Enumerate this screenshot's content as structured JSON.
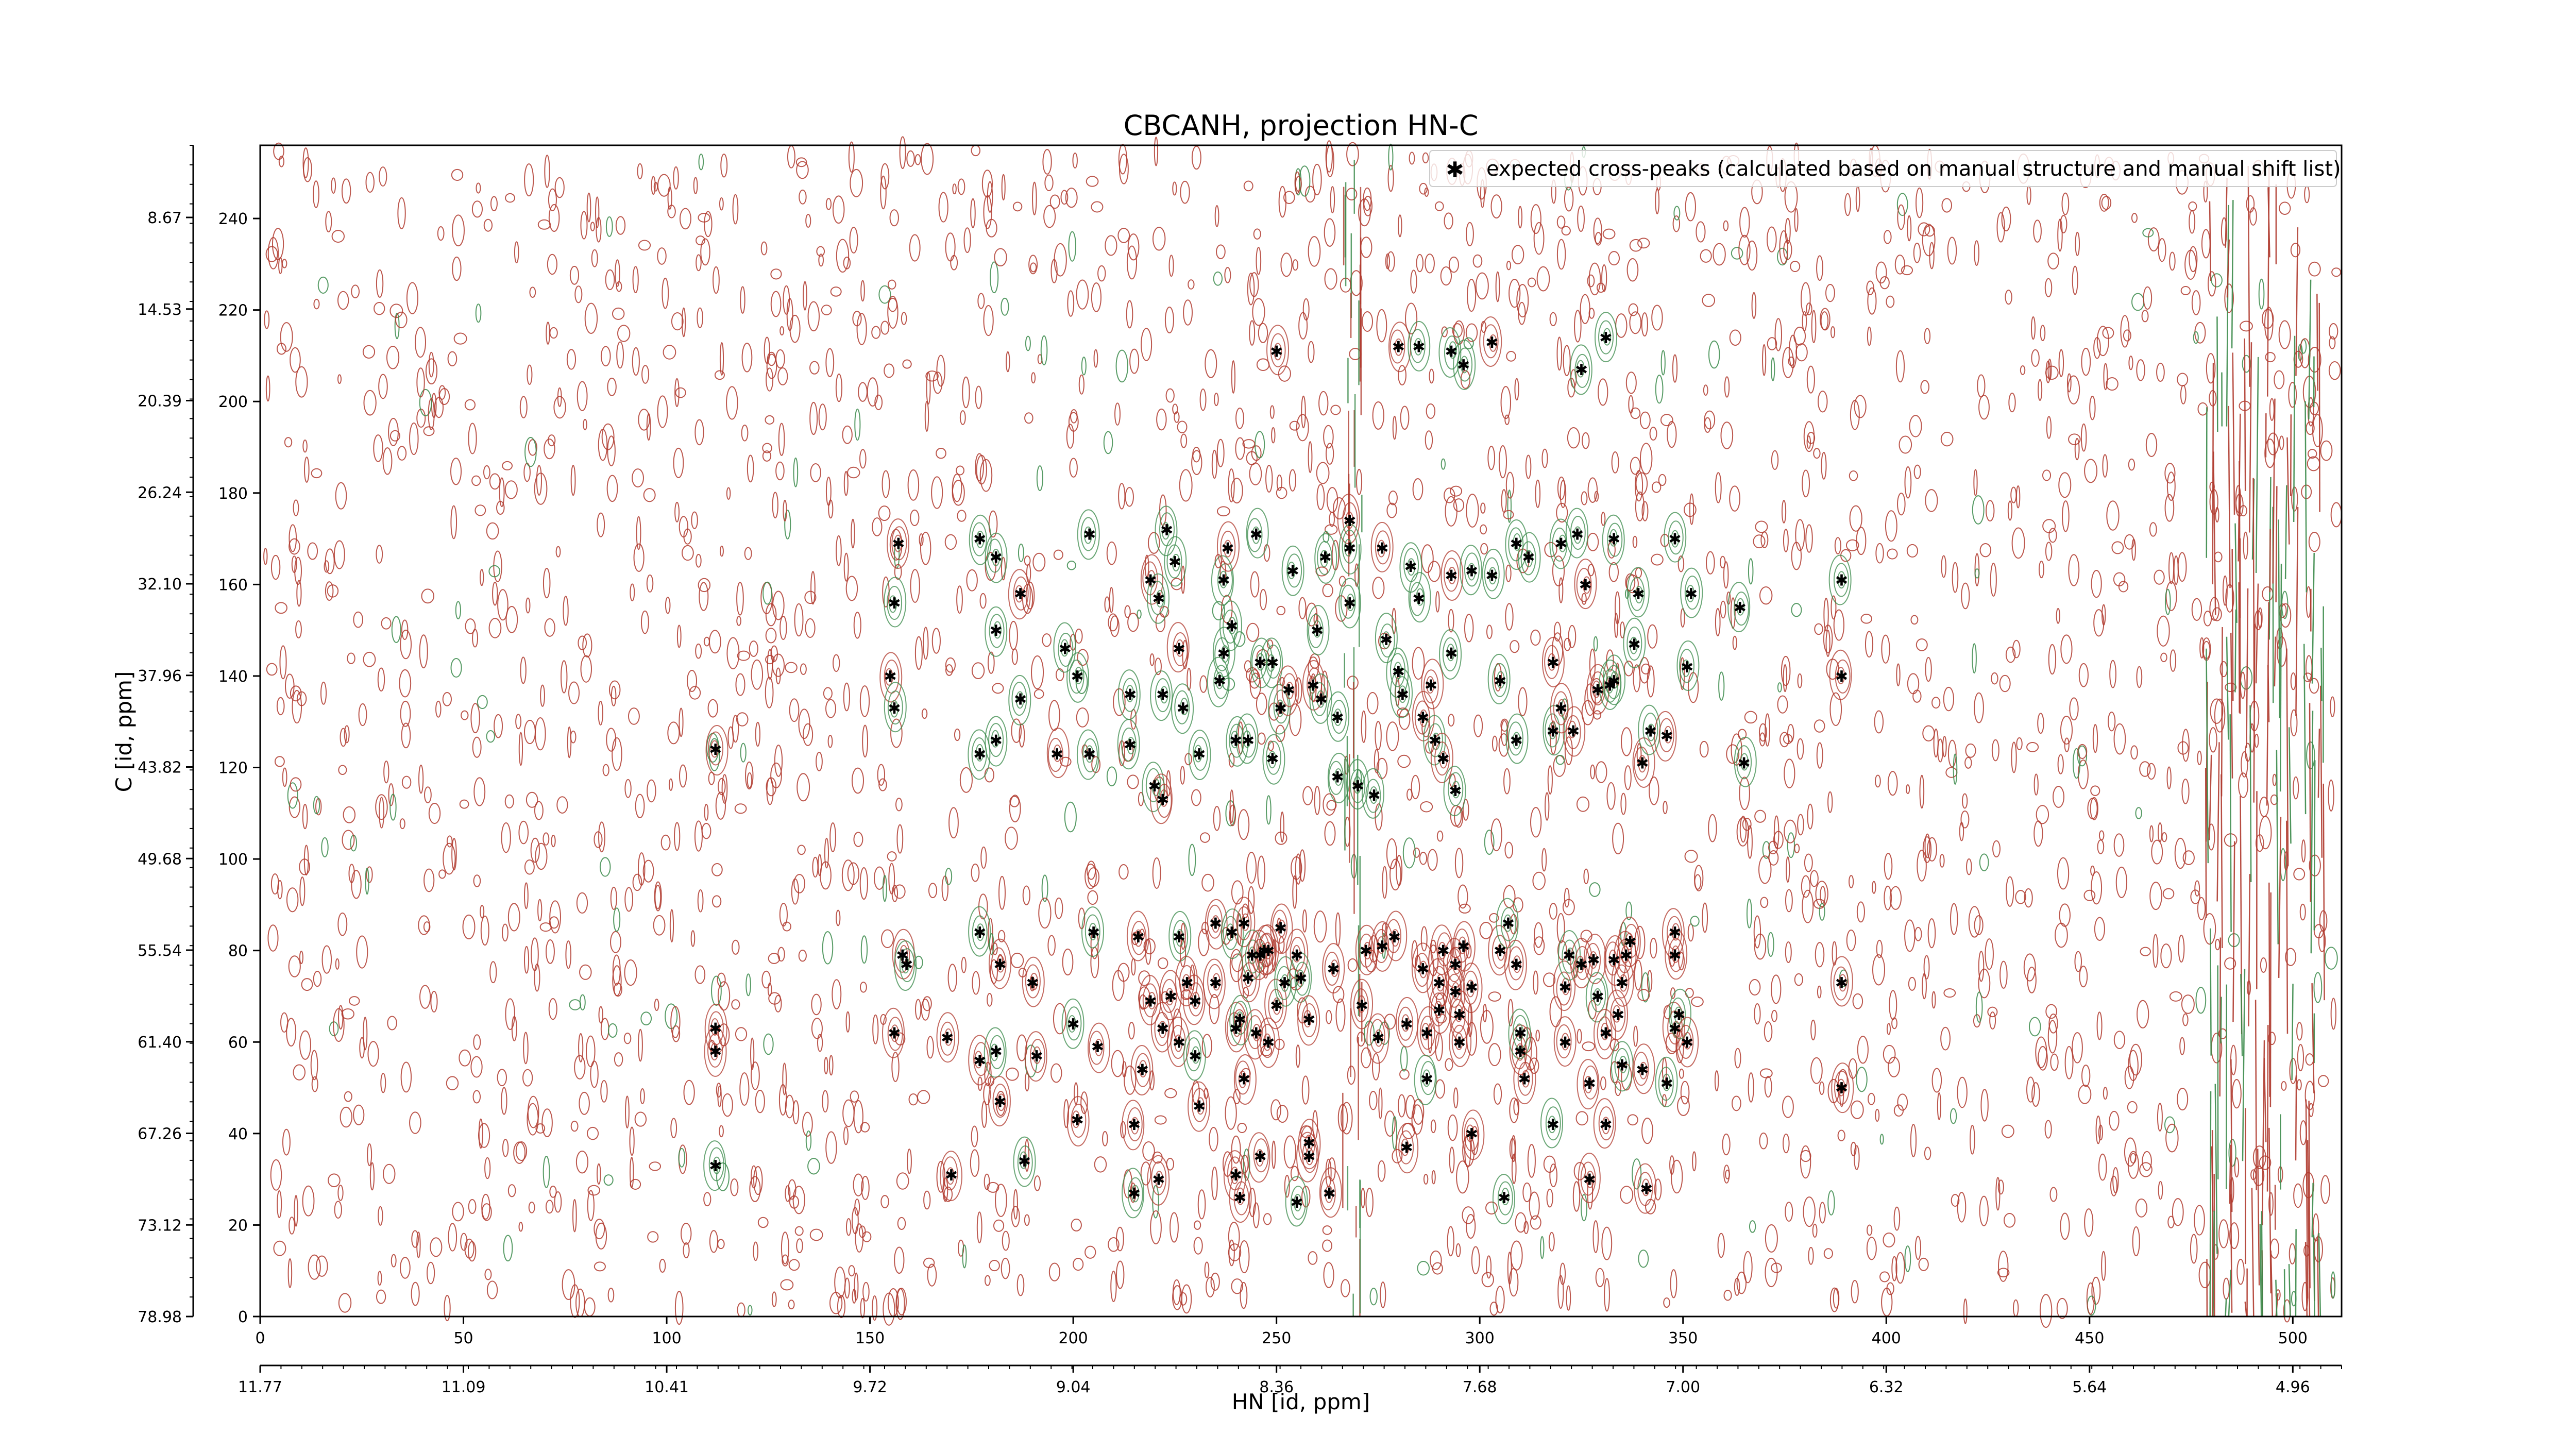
{
  "chart_data": {
    "type": "scatter",
    "title": "CBCANH, projection HN-C",
    "xlabel": "HN [id, ppm]",
    "ylabel": "C [id, ppm]",
    "xlim": [
      0,
      512
    ],
    "ylim": [
      0,
      256
    ],
    "x_ticks": [
      0,
      50,
      100,
      150,
      200,
      250,
      300,
      350,
      400,
      450,
      500
    ],
    "y_ticks": [
      0,
      20,
      40,
      60,
      80,
      100,
      120,
      140,
      160,
      180,
      200,
      220,
      240
    ],
    "x_ppm_ticks": [
      "11.77",
      "11.09",
      "10.41",
      "9.72",
      "9.04",
      "8.36",
      "7.68",
      "7.00",
      "6.32",
      "5.64",
      "4.96"
    ],
    "y_ppm_ticks": [
      "8.67",
      "14.53",
      "20.39",
      "26.24",
      "32.10",
      "37.96",
      "43.82",
      "49.68",
      "55.54",
      "61.40",
      "67.26",
      "73.12",
      "78.98"
    ],
    "legend_position": "top-right",
    "colors": {
      "marker": "#0000ff",
      "negative_contour": "#b03a2e",
      "positive_contour": "#3a8a4a",
      "axes": "#000000"
    },
    "series": [
      {
        "name": "expected cross-peaks (calculated based on manual structure and manual shift list)",
        "marker": "star",
        "points": [
          [
            112,
            124
          ],
          [
            112,
            58
          ],
          [
            112,
            63
          ],
          [
            112,
            33
          ],
          [
            155,
            140
          ],
          [
            156,
            133
          ],
          [
            156,
            156
          ],
          [
            156,
            62
          ],
          [
            157,
            169
          ],
          [
            158,
            79
          ],
          [
            159,
            77
          ],
          [
            169,
            61
          ],
          [
            170,
            31
          ],
          [
            177,
            170
          ],
          [
            177,
            123
          ],
          [
            177,
            84
          ],
          [
            177,
            56
          ],
          [
            181,
            166
          ],
          [
            181,
            150
          ],
          [
            181,
            126
          ],
          [
            181,
            58
          ],
          [
            182,
            77
          ],
          [
            182,
            47
          ],
          [
            187,
            135
          ],
          [
            187,
            158
          ],
          [
            188,
            34
          ],
          [
            190,
            73
          ],
          [
            191,
            57
          ],
          [
            196,
            123
          ],
          [
            198,
            146
          ],
          [
            200,
            64
          ],
          [
            201,
            140
          ],
          [
            201,
            43
          ],
          [
            204,
            123
          ],
          [
            204,
            171
          ],
          [
            205,
            84
          ],
          [
            206,
            59
          ],
          [
            214,
            136
          ],
          [
            214,
            125
          ],
          [
            215,
            42
          ],
          [
            215,
            27
          ],
          [
            216,
            83
          ],
          [
            217,
            54
          ],
          [
            219,
            69
          ],
          [
            219,
            161
          ],
          [
            220,
            116
          ],
          [
            221,
            157
          ],
          [
            221,
            30
          ],
          [
            222,
            113
          ],
          [
            222,
            63
          ],
          [
            222,
            136
          ],
          [
            223,
            172
          ],
          [
            224,
            70
          ],
          [
            225,
            165
          ],
          [
            226,
            60
          ],
          [
            226,
            83
          ],
          [
            226,
            146
          ],
          [
            227,
            133
          ],
          [
            228,
            73
          ],
          [
            230,
            69
          ],
          [
            230,
            57
          ],
          [
            231,
            123
          ],
          [
            231,
            46
          ],
          [
            235,
            86
          ],
          [
            235,
            73
          ],
          [
            236,
            139
          ],
          [
            237,
            161
          ],
          [
            237,
            145
          ],
          [
            238,
            168
          ],
          [
            239,
            151
          ],
          [
            239,
            84
          ],
          [
            240,
            126
          ],
          [
            240,
            63
          ],
          [
            240,
            31
          ],
          [
            241,
            26
          ],
          [
            241,
            65
          ],
          [
            242,
            52
          ],
          [
            242,
            86
          ],
          [
            243,
            74
          ],
          [
            243,
            126
          ],
          [
            244,
            79
          ],
          [
            245,
            62
          ],
          [
            245,
            171
          ],
          [
            246,
            35
          ],
          [
            246,
            79
          ],
          [
            246,
            143
          ],
          [
            247,
            80
          ],
          [
            248,
            60
          ],
          [
            248,
            80
          ],
          [
            249,
            143
          ],
          [
            249,
            122
          ],
          [
            250,
            68
          ],
          [
            250,
            211
          ],
          [
            251,
            85
          ],
          [
            251,
            133
          ],
          [
            252,
            73
          ],
          [
            253,
            137
          ],
          [
            254,
            163
          ],
          [
            255,
            79
          ],
          [
            255,
            25
          ],
          [
            256,
            74
          ],
          [
            258,
            38
          ],
          [
            258,
            65
          ],
          [
            258,
            35
          ],
          [
            259,
            138
          ],
          [
            260,
            150
          ],
          [
            261,
            135
          ],
          [
            262,
            166
          ],
          [
            263,
            27
          ],
          [
            264,
            76
          ],
          [
            265,
            131
          ],
          [
            265,
            118
          ],
          [
            268,
            174
          ],
          [
            268,
            156
          ],
          [
            268,
            168
          ],
          [
            270,
            116
          ],
          [
            271,
            68
          ],
          [
            272,
            80
          ],
          [
            274,
            114
          ],
          [
            275,
            61
          ],
          [
            276,
            168
          ],
          [
            276,
            81
          ],
          [
            277,
            148
          ],
          [
            279,
            83
          ],
          [
            280,
            212
          ],
          [
            280,
            141
          ],
          [
            281,
            136
          ],
          [
            282,
            64
          ],
          [
            282,
            37
          ],
          [
            283,
            164
          ],
          [
            285,
            212
          ],
          [
            285,
            157
          ],
          [
            286,
            131
          ],
          [
            286,
            76
          ],
          [
            287,
            62
          ],
          [
            287,
            52
          ],
          [
            288,
            138
          ],
          [
            289,
            126
          ],
          [
            290,
            67
          ],
          [
            290,
            73
          ],
          [
            291,
            122
          ],
          [
            291,
            80
          ],
          [
            293,
            211
          ],
          [
            293,
            145
          ],
          [
            293,
            162
          ],
          [
            294,
            115
          ],
          [
            294,
            71
          ],
          [
            294,
            77
          ],
          [
            295,
            60
          ],
          [
            295,
            66
          ],
          [
            296,
            208
          ],
          [
            296,
            81
          ],
          [
            298,
            72
          ],
          [
            298,
            40
          ],
          [
            298,
            163
          ],
          [
            303,
            162
          ],
          [
            303,
            213
          ],
          [
            305,
            139
          ],
          [
            305,
            80
          ],
          [
            306,
            26
          ],
          [
            307,
            86
          ],
          [
            309,
            169
          ],
          [
            309,
            126
          ],
          [
            309,
            77
          ],
          [
            310,
            58
          ],
          [
            310,
            62
          ],
          [
            311,
            52
          ],
          [
            312,
            166
          ],
          [
            318,
            143
          ],
          [
            318,
            128
          ],
          [
            318,
            42
          ],
          [
            320,
            169
          ],
          [
            320,
            133
          ],
          [
            321,
            72
          ],
          [
            321,
            60
          ],
          [
            322,
            79
          ],
          [
            323,
            128
          ],
          [
            324,
            171
          ],
          [
            325,
            207
          ],
          [
            325,
            77
          ],
          [
            326,
            160
          ],
          [
            327,
            51
          ],
          [
            327,
            30
          ],
          [
            328,
            78
          ],
          [
            329,
            137
          ],
          [
            329,
            70
          ],
          [
            331,
            214
          ],
          [
            331,
            62
          ],
          [
            331,
            42
          ],
          [
            332,
            138
          ],
          [
            333,
            139
          ],
          [
            333,
            170
          ],
          [
            333,
            78
          ],
          [
            334,
            66
          ],
          [
            335,
            73
          ],
          [
            335,
            55
          ],
          [
            336,
            79
          ],
          [
            337,
            82
          ],
          [
            338,
            147
          ],
          [
            339,
            158
          ],
          [
            340,
            121
          ],
          [
            340,
            54
          ],
          [
            341,
            28
          ],
          [
            342,
            128
          ],
          [
            346,
            127
          ],
          [
            346,
            51
          ],
          [
            348,
            170
          ],
          [
            348,
            84
          ],
          [
            348,
            79
          ],
          [
            348,
            63
          ],
          [
            349,
            66
          ],
          [
            351,
            142
          ],
          [
            351,
            60
          ],
          [
            352,
            158
          ],
          [
            364,
            155
          ],
          [
            365,
            121
          ],
          [
            389,
            140
          ],
          [
            389,
            73
          ],
          [
            389,
            161
          ],
          [
            389,
            50
          ]
        ]
      }
    ]
  }
}
